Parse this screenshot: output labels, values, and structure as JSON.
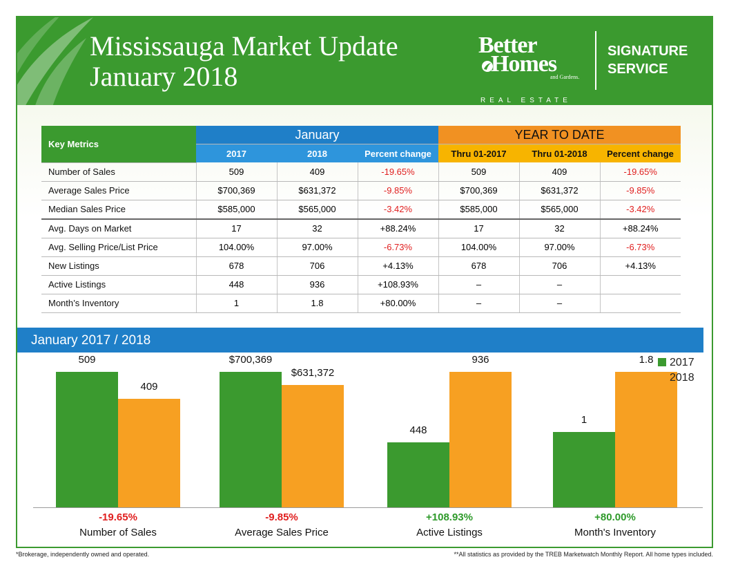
{
  "header": {
    "title_line1": "Mississauga Market Update",
    "title_line2": "January 2018",
    "brand_line1": "Better",
    "brand_line2": "Homes",
    "brand_line3": "and Gardens.",
    "brand_line4": "REAL ESTATE",
    "signature_line1": "SIGNATURE",
    "signature_line2": "SERVICE"
  },
  "table": {
    "key_metrics_label": "Key Metrics",
    "january_label": "January",
    "ytd_label": "YEAR TO DATE",
    "sub_headers": [
      "2017",
      "2018",
      "Percent change",
      "Thru 01-2017",
      "Thru 01-2018",
      "Percent change"
    ],
    "rows": [
      {
        "metric": "Number of Sales",
        "v": [
          "509",
          "409",
          "-19.65%",
          "509",
          "409",
          "-19.65%"
        ]
      },
      {
        "metric": "Average Sales Price",
        "v": [
          "$700,369",
          "$631,372",
          "-9.85%",
          "$700,369",
          "$631,372",
          "-9.85%"
        ]
      },
      {
        "metric": "Median Sales Price",
        "v": [
          "$585,000",
          "$565,000",
          "-3.42%",
          "$585,000",
          "$565,000",
          "-3.42%"
        ]
      },
      {
        "metric": "Avg. Days on Market",
        "v": [
          "17",
          "32",
          "+88.24%",
          "17",
          "32",
          "+88.24%"
        ]
      },
      {
        "metric": "Avg. Selling Price/List Price",
        "v": [
          "104.00%",
          "97.00%",
          "-6.73%",
          "104.00%",
          "97.00%",
          "-6.73%"
        ]
      },
      {
        "metric": "New Listings",
        "v": [
          "678",
          "706",
          "+4.13%",
          "678",
          "706",
          "+4.13%"
        ]
      },
      {
        "metric": "Active Listings",
        "v": [
          "448",
          "936",
          "+108.93%",
          "–",
          "–",
          ""
        ]
      },
      {
        "metric": "Month’s Inventory",
        "v": [
          "1",
          "1.8",
          "+80.00%",
          "–",
          "–",
          ""
        ]
      }
    ]
  },
  "chart_band_title": "January  2017 / 2018",
  "chart_data": {
    "type": "bar",
    "categories": [
      "Number of Sales",
      "Average Sales Price",
      "Active Listings",
      "Month's Inventory"
    ],
    "series": [
      {
        "name": "2017",
        "values": [
          509,
          700369,
          448,
          1
        ],
        "labels": [
          "509",
          "$700,369",
          "448",
          "1"
        ],
        "color": "#3b9a2f"
      },
      {
        "name": "2018",
        "values": [
          409,
          631372,
          936,
          1.8
        ],
        "labels": [
          "409",
          "$631,372",
          "936",
          "1.8"
        ],
        "color": "#f7a022"
      }
    ],
    "percent_change": [
      "-19.65%",
      "-9.85%",
      "+108.93%",
      "+80.00%"
    ],
    "percent_colors": [
      "#e01e1e",
      "#e01e1e",
      "#2e9a2a",
      "#2e9a2a"
    ],
    "scale_note": "each category group scaled independently"
  },
  "footer": {
    "left": "*Brokerage, independently owned and operated.",
    "right": "**All statistics as provided by the TREB Marketwatch Monthly Report. All home types included."
  }
}
